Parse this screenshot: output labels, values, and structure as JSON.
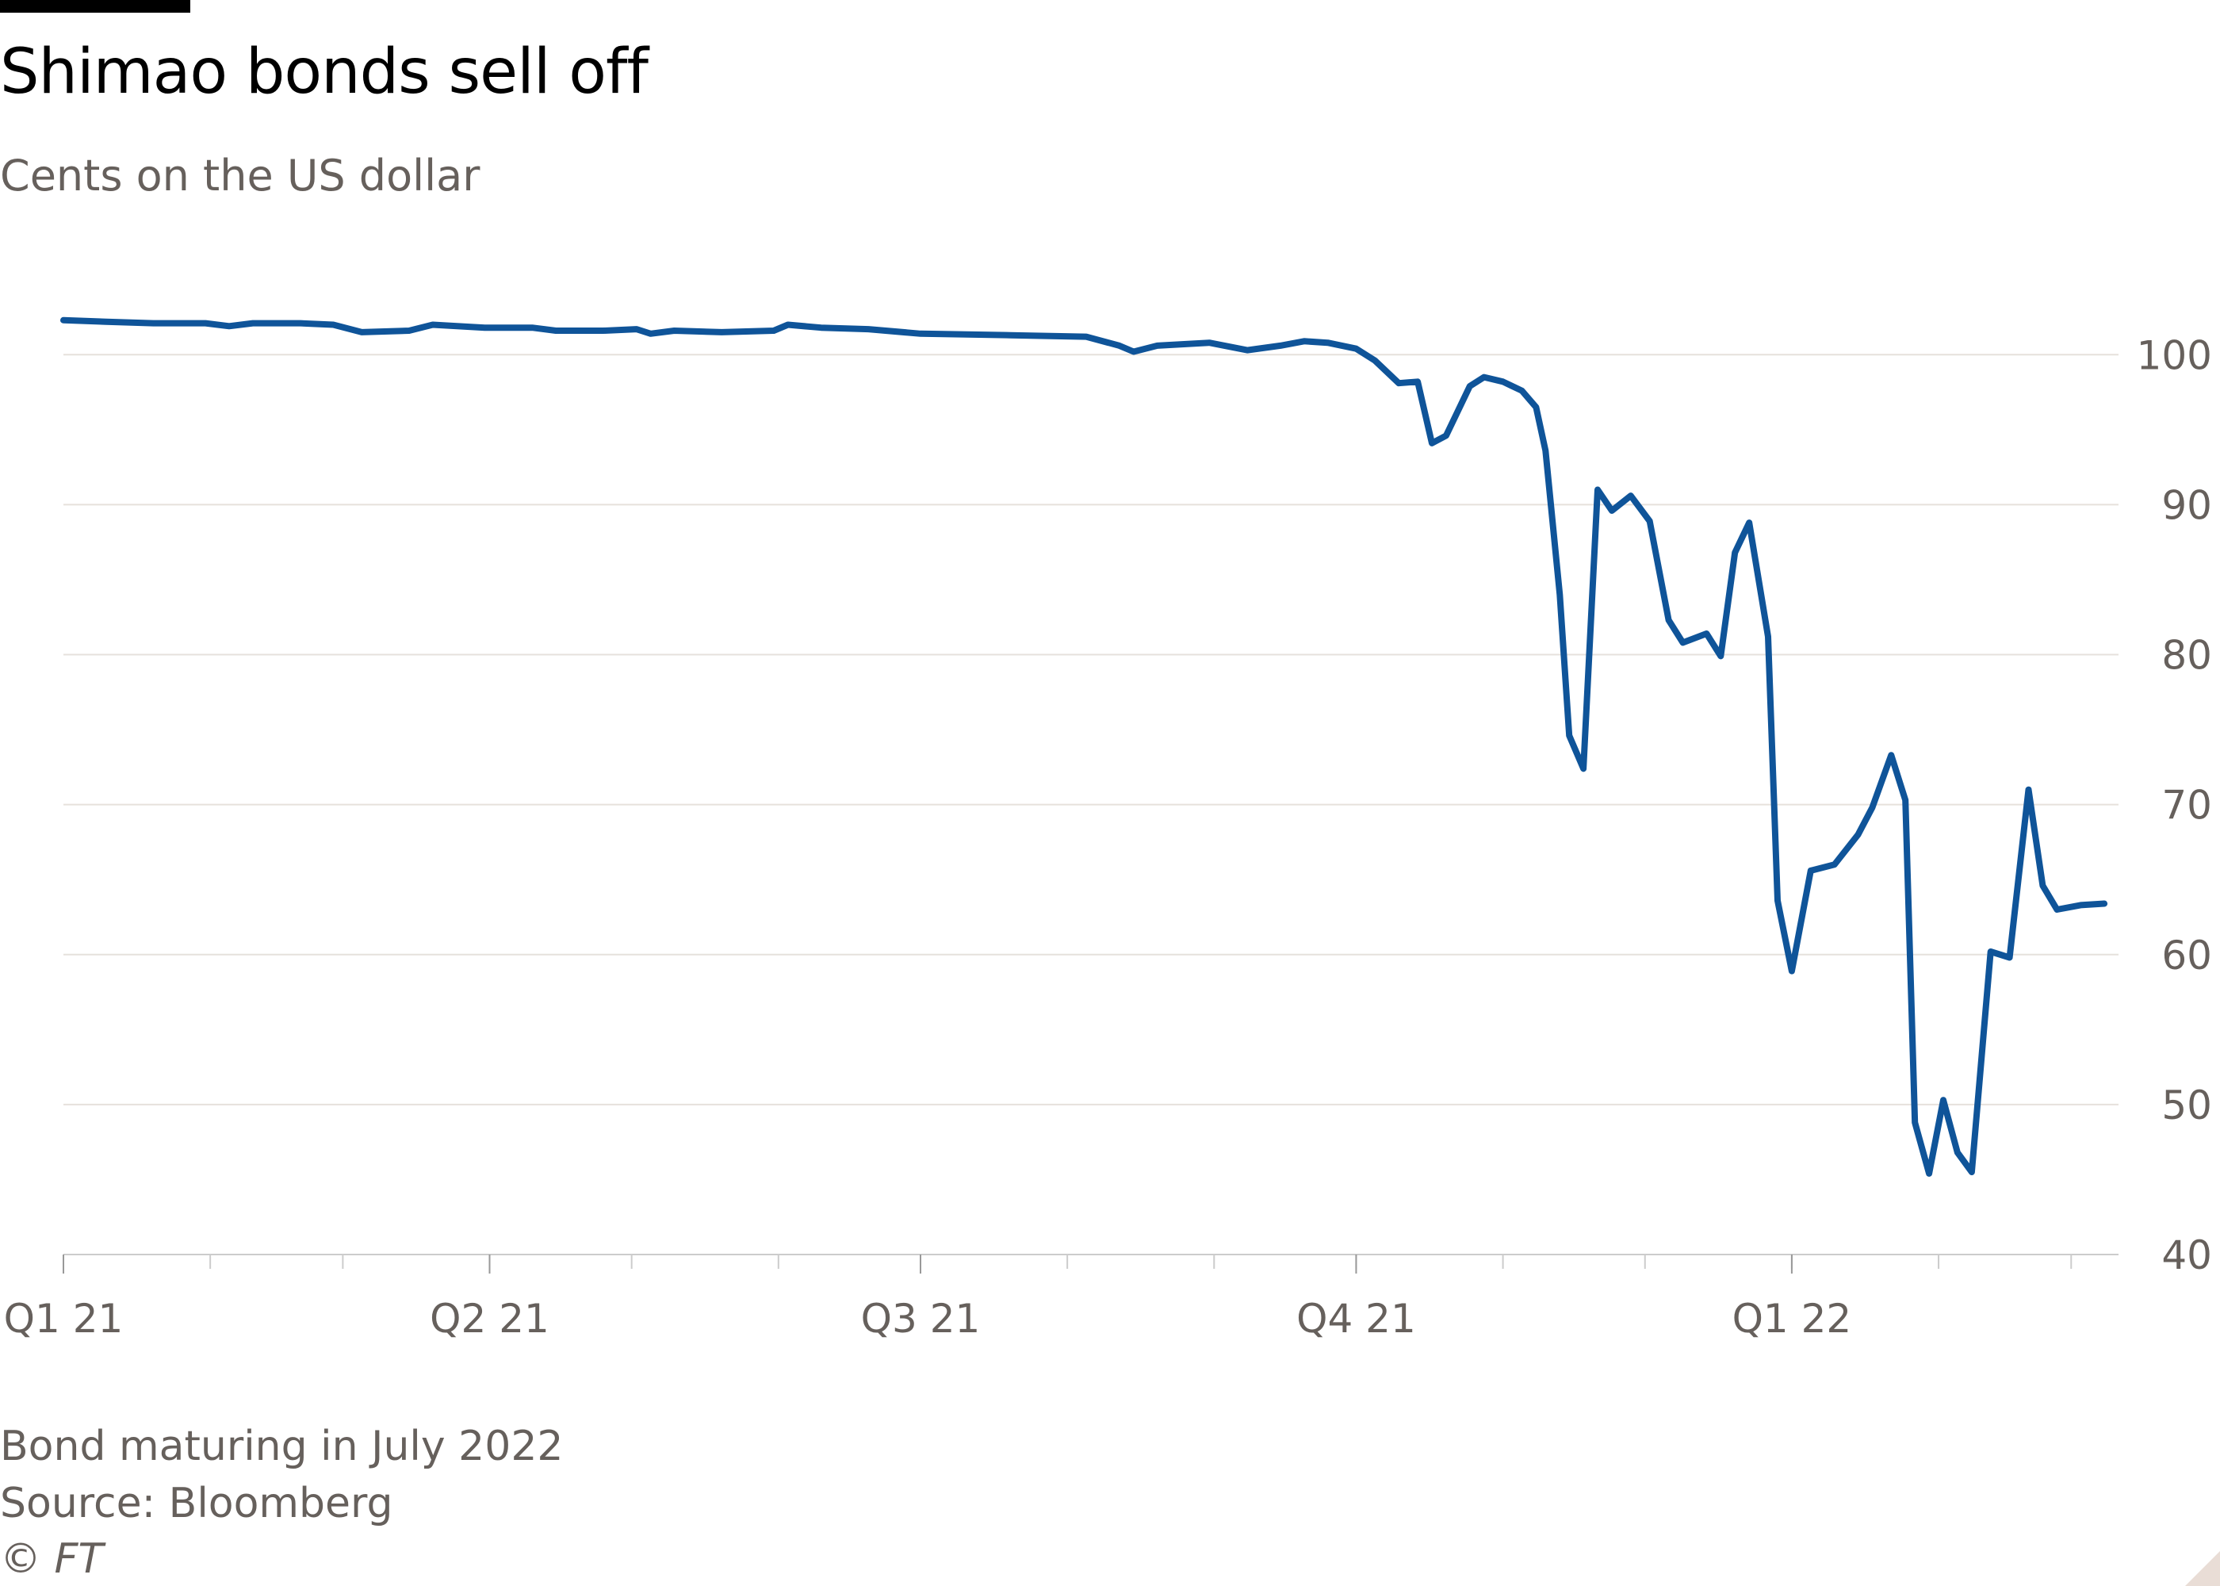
{
  "title": "Shimao bonds sell off",
  "subtitle": "Cents on the US dollar",
  "footer": {
    "note": "Bond maturing in July 2022",
    "source": "Source: Bloomberg",
    "copyright": "© FT"
  },
  "colors": {
    "line": "#0f5499",
    "grid": "#e6e1dc",
    "axis": "#cccccc",
    "text": "#66605c"
  },
  "chart_data": {
    "type": "line",
    "xlabel": "",
    "ylabel": "",
    "ylim": [
      40,
      102.5
    ],
    "xlim": [
      "2021-01-01",
      "2022-03-11"
    ],
    "yticks": [
      40,
      50,
      60,
      70,
      80,
      90,
      100
    ],
    "ytick_labels": [
      "40",
      "50",
      "60",
      "70",
      "80",
      "90",
      "100"
    ],
    "xticks": [
      {
        "date": "2021-01-01",
        "label": "Q1 21"
      },
      {
        "date": "2021-04-01",
        "label": "Q2 21"
      },
      {
        "date": "2021-07-01",
        "label": "Q3 21"
      },
      {
        "date": "2021-10-01",
        "label": "Q4 21"
      },
      {
        "date": "2022-01-01",
        "label": "Q1 22"
      }
    ],
    "minor_ticks": [
      "2021-01-01",
      "2021-02-01",
      "2021-03-01",
      "2021-04-01",
      "2021-05-01",
      "2021-06-01",
      "2021-07-01",
      "2021-08-01",
      "2021-09-01",
      "2021-10-01",
      "2021-11-01",
      "2021-12-01",
      "2022-01-01",
      "2022-02-01",
      "2022-03-01"
    ],
    "grid": true,
    "y_axis_position": "right",
    "series": [
      {
        "points": [
          [
            "2021-01-01",
            102.3
          ],
          [
            "2021-01-10",
            102.2
          ],
          [
            "2021-01-20",
            102.1
          ],
          [
            "2021-01-31",
            102.1
          ],
          [
            "2021-02-05",
            101.9
          ],
          [
            "2021-02-10",
            102.1
          ],
          [
            "2021-02-20",
            102.1
          ],
          [
            "2021-02-27",
            102.0
          ],
          [
            "2021-03-05",
            101.5
          ],
          [
            "2021-03-15",
            101.6
          ],
          [
            "2021-03-20",
            102.0
          ],
          [
            "2021-03-31",
            101.8
          ],
          [
            "2021-04-10",
            101.8
          ],
          [
            "2021-04-15",
            101.6
          ],
          [
            "2021-04-25",
            101.6
          ],
          [
            "2021-05-02",
            101.7
          ],
          [
            "2021-05-05",
            101.4
          ],
          [
            "2021-05-10",
            101.6
          ],
          [
            "2021-05-20",
            101.5
          ],
          [
            "2021-05-31",
            101.6
          ],
          [
            "2021-06-03",
            102.0
          ],
          [
            "2021-06-10",
            101.8
          ],
          [
            "2021-06-20",
            101.7
          ],
          [
            "2021-07-01",
            101.4
          ],
          [
            "2021-07-20",
            101.3
          ],
          [
            "2021-08-05",
            101.2
          ],
          [
            "2021-08-12",
            100.6
          ],
          [
            "2021-08-15",
            100.2
          ],
          [
            "2021-08-20",
            100.6
          ],
          [
            "2021-08-31",
            100.8
          ],
          [
            "2021-09-08",
            100.3
          ],
          [
            "2021-09-15",
            100.6
          ],
          [
            "2021-09-20",
            100.9
          ],
          [
            "2021-09-25",
            100.8
          ],
          [
            "2021-10-01",
            100.4
          ],
          [
            "2021-10-05",
            99.6
          ],
          [
            "2021-10-10",
            98.1
          ],
          [
            "2021-10-14",
            98.2
          ],
          [
            "2021-10-17",
            94.1
          ],
          [
            "2021-10-20",
            94.6
          ],
          [
            "2021-10-25",
            97.9
          ],
          [
            "2021-10-28",
            98.5
          ],
          [
            "2021-11-01",
            98.2
          ],
          [
            "2021-11-05",
            97.6
          ],
          [
            "2021-11-08",
            96.5
          ],
          [
            "2021-11-10",
            93.6
          ],
          [
            "2021-11-13",
            84.0
          ],
          [
            "2021-11-15",
            74.6
          ],
          [
            "2021-11-18",
            72.4
          ],
          [
            "2021-11-21",
            91.0
          ],
          [
            "2021-11-24",
            89.6
          ],
          [
            "2021-11-28",
            90.6
          ],
          [
            "2021-12-02",
            88.9
          ],
          [
            "2021-12-06",
            82.3
          ],
          [
            "2021-12-09",
            80.8
          ],
          [
            "2021-12-14",
            81.4
          ],
          [
            "2021-12-17",
            79.9
          ],
          [
            "2021-12-20",
            86.8
          ],
          [
            "2021-12-23",
            88.8
          ],
          [
            "2021-12-27",
            81.2
          ],
          [
            "2021-12-29",
            63.6
          ],
          [
            "2022-01-01",
            58.9
          ],
          [
            "2022-01-05",
            65.6
          ],
          [
            "2022-01-10",
            66.0
          ],
          [
            "2022-01-15",
            68.0
          ],
          [
            "2022-01-18",
            69.8
          ],
          [
            "2022-01-22",
            73.3
          ],
          [
            "2022-01-25",
            70.3
          ],
          [
            "2022-01-27",
            48.8
          ],
          [
            "2022-01-30",
            45.4
          ],
          [
            "2022-02-02",
            50.3
          ],
          [
            "2022-02-05",
            46.8
          ],
          [
            "2022-02-08",
            45.5
          ],
          [
            "2022-02-12",
            60.2
          ],
          [
            "2022-02-16",
            59.8
          ],
          [
            "2022-02-20",
            71.0
          ],
          [
            "2022-02-23",
            64.6
          ],
          [
            "2022-02-26",
            63.0
          ],
          [
            "2022-03-03",
            63.3
          ],
          [
            "2022-03-08",
            63.4
          ]
        ]
      }
    ]
  }
}
